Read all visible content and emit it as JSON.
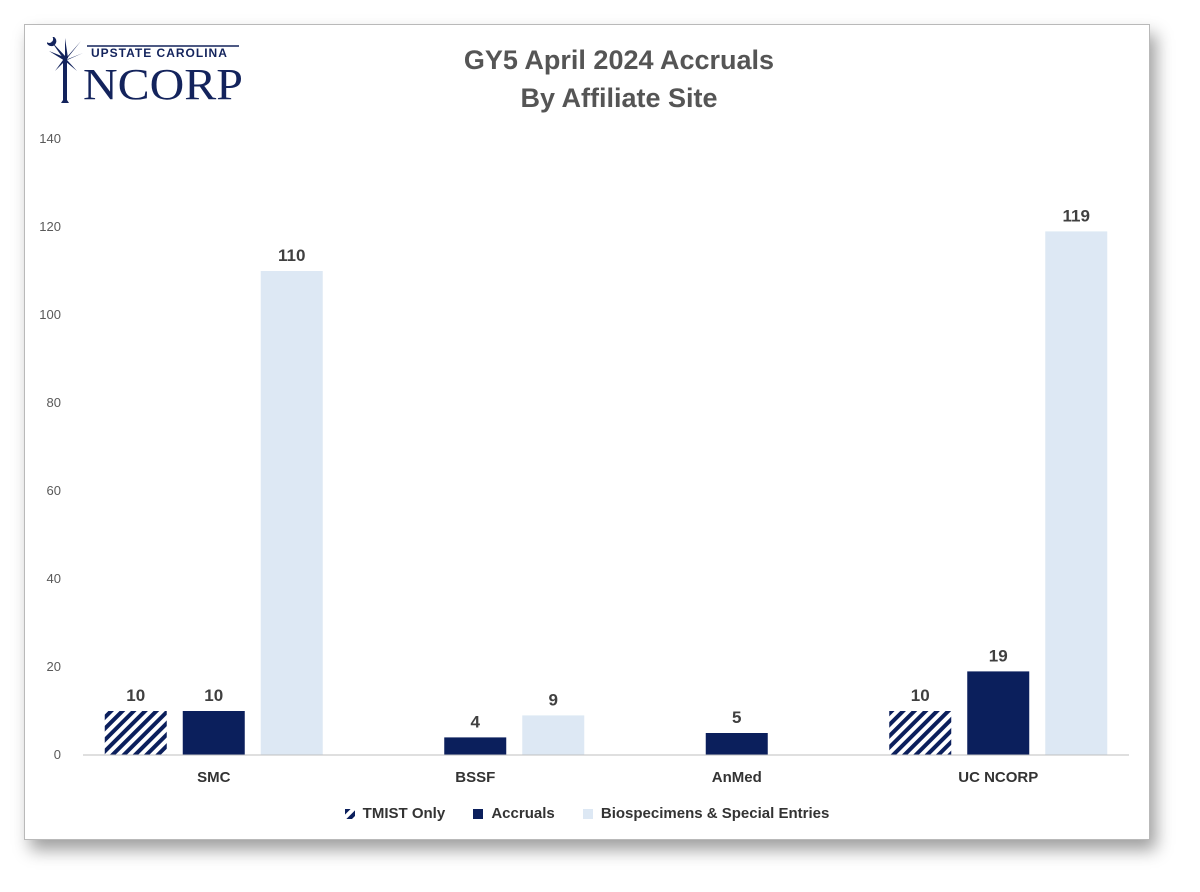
{
  "logo": {
    "top_text": "UPSTATE CAROLINA",
    "main_text": "NCORP"
  },
  "chart_data": {
    "type": "bar",
    "title": "GY5 April 2024 Accruals",
    "subtitle": "By Affiliate Site",
    "categories": [
      "SMC",
      "BSSF",
      "AnMed",
      "UC NCORP"
    ],
    "series": [
      {
        "name": "TMIST Only",
        "values": [
          10,
          null,
          null,
          10
        ],
        "color": "#0b1f5c",
        "pattern": "hatched"
      },
      {
        "name": "Accruals",
        "values": [
          10,
          4,
          5,
          19
        ],
        "color": "#0b1f5c"
      },
      {
        "name": "Biospecimens & Special Entries",
        "values": [
          110,
          9,
          null,
          119
        ],
        "color": "#dde8f4"
      }
    ],
    "ylim": [
      0,
      140
    ],
    "yticks": [
      0,
      20,
      40,
      60,
      80,
      100,
      120,
      140
    ],
    "grid": false,
    "legend": "bottom"
  }
}
